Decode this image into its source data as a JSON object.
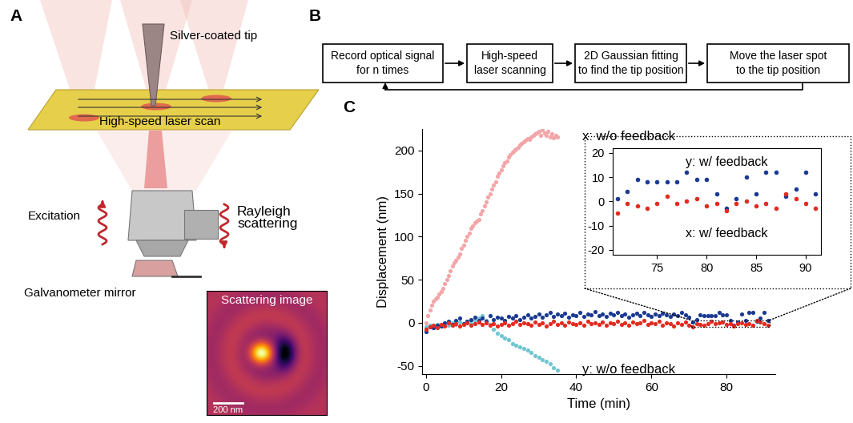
{
  "panel_labels": [
    "A",
    "B",
    "C"
  ],
  "panel_a": {
    "tip": "Silver-coated tip",
    "scan": "High-speed laser scan",
    "excitation": "Excitation",
    "scattering": "Rayleigh\nscattering",
    "mirror": "Galvanometer mirror",
    "image_title": "Scattering image",
    "scale_bar": "200 nm"
  },
  "panel_b": {
    "steps": [
      "Record optical signal\nfor n times",
      "High-speed\nlaser scanning",
      "2D Gaussian fitting\nto find the tip position",
      "Move the laser spot\nto the tip position"
    ]
  },
  "chart_data": [
    {
      "type": "scatter",
      "marker": "o",
      "xlabel": "Time (min)",
      "ylabel": "Displacement (nm)",
      "xlim": [
        -1,
        93
      ],
      "ylim": [
        -60,
        225
      ],
      "xticks": [
        0,
        20,
        40,
        60,
        80
      ],
      "yticks": [
        -50,
        0,
        50,
        100,
        150,
        200
      ],
      "series": [
        {
          "name": "x: w/o feedback",
          "color": "#f4a5a8",
          "x": [
            0,
            0.5,
            1,
            1.5,
            2,
            2.5,
            3,
            3.5,
            4,
            4.5,
            5,
            5.5,
            6,
            6.5,
            7,
            7.5,
            8,
            8.5,
            9,
            9.5,
            10,
            10.5,
            11,
            11.5,
            12,
            12.5,
            13,
            13.5,
            14,
            14.5,
            15,
            15.5,
            16,
            16.5,
            17,
            17.5,
            18,
            18.5,
            19,
            19.5,
            20,
            20.5,
            21,
            21.5,
            22,
            22.5,
            23,
            23.5,
            24,
            24.5,
            25,
            25.5,
            26,
            26.5,
            27,
            27.5,
            28,
            28.5,
            29,
            29.5,
            30,
            30.5,
            31,
            31.5,
            32,
            32.5,
            33,
            33.5,
            34,
            34.5,
            35
          ],
          "values": [
            0,
            8,
            15,
            20,
            25,
            28,
            30,
            33,
            36,
            40,
            45,
            50,
            55,
            60,
            66,
            70,
            72,
            76,
            80,
            86,
            90,
            96,
            100,
            104,
            110,
            112,
            116,
            118,
            120,
            126,
            130,
            136,
            140,
            146,
            150,
            155,
            160,
            164,
            170,
            174,
            178,
            182,
            186,
            188,
            192,
            195,
            198,
            200,
            202,
            204,
            206,
            208,
            210,
            212,
            214,
            213,
            216,
            218,
            219,
            220,
            222,
            218,
            224,
            220,
            218,
            222,
            216,
            219,
            215,
            218,
            216
          ]
        },
        {
          "name": "y: w/o feedback",
          "color": "#71c6d1",
          "x": [
            0,
            1,
            2,
            3,
            4,
            5,
            6,
            7,
            8,
            9,
            10,
            11,
            12,
            13,
            14,
            15,
            16,
            17,
            18,
            19,
            20,
            21,
            22,
            23,
            24,
            25,
            26,
            27,
            28,
            29,
            30,
            31,
            32,
            33,
            34,
            35
          ],
          "values": [
            -5,
            -3,
            -6,
            -2,
            -4,
            -1,
            -3,
            0,
            -2,
            1,
            -1,
            2,
            0,
            3,
            5,
            8,
            3,
            -2,
            -8,
            -12,
            -15,
            -18,
            -20,
            -24,
            -26,
            -28,
            -30,
            -32,
            -35,
            -38,
            -40,
            -43,
            -45,
            -48,
            -52,
            -55
          ]
        },
        {
          "color": "#1b3a93",
          "x": [
            0,
            1,
            2,
            3,
            4,
            5,
            6,
            7,
            8,
            9,
            10,
            11,
            12,
            13,
            14,
            15,
            16,
            17,
            18,
            19,
            20,
            21,
            22,
            23,
            24,
            25,
            26,
            27,
            28,
            29,
            30,
            31,
            32,
            33,
            34,
            35,
            36,
            37,
            38,
            39,
            40,
            41,
            42,
            43,
            44,
            45,
            46,
            47,
            48,
            49,
            50,
            51,
            52,
            53,
            54,
            55,
            56,
            57,
            58,
            59,
            60,
            61,
            62,
            63,
            64,
            65,
            66,
            67,
            68,
            69,
            70,
            71,
            72,
            73,
            74,
            75,
            76,
            77,
            78,
            79,
            80,
            81,
            82,
            83,
            84,
            85,
            86,
            87,
            88,
            89,
            90,
            91
          ],
          "values": [
            -10,
            -5,
            -6,
            -3,
            -4,
            0,
            2,
            -2,
            3,
            5,
            -1,
            2,
            4,
            6,
            3,
            5,
            2,
            8,
            4,
            6,
            5,
            3,
            7,
            5,
            8,
            4,
            6,
            9,
            5,
            7,
            10,
            6,
            9,
            12,
            7,
            10,
            8,
            11,
            6,
            9,
            8,
            12,
            7,
            10,
            9,
            13,
            8,
            10,
            7,
            11,
            9,
            12,
            8,
            10,
            6,
            9,
            11,
            8,
            12,
            9,
            7,
            10,
            8,
            11,
            9,
            7,
            10,
            8,
            12,
            9,
            6,
            1,
            4,
            9,
            8,
            8,
            8,
            8,
            12,
            9,
            9,
            3,
            -3,
            1,
            10,
            3,
            12,
            12,
            2,
            5,
            12,
            3
          ]
        },
        {
          "color": "#e42b20",
          "x": [
            0,
            1,
            2,
            3,
            4,
            5,
            6,
            7,
            8,
            9,
            10,
            11,
            12,
            13,
            14,
            15,
            16,
            17,
            18,
            19,
            20,
            21,
            22,
            23,
            24,
            25,
            26,
            27,
            28,
            29,
            30,
            31,
            32,
            33,
            34,
            35,
            36,
            37,
            38,
            39,
            40,
            41,
            42,
            43,
            44,
            45,
            46,
            47,
            48,
            49,
            50,
            51,
            52,
            53,
            54,
            55,
            56,
            57,
            58,
            59,
            60,
            61,
            62,
            63,
            64,
            65,
            66,
            67,
            68,
            69,
            70,
            71,
            72,
            73,
            74,
            75,
            76,
            77,
            78,
            79,
            80,
            81,
            82,
            83,
            84,
            85,
            86,
            87,
            88,
            89,
            90,
            91
          ],
          "values": [
            -8,
            -5,
            -3,
            -6,
            -2,
            -4,
            0,
            -3,
            -1,
            -4,
            -2,
            0,
            -3,
            -1,
            1,
            -2,
            0,
            -3,
            -1,
            -4,
            -2,
            0,
            -3,
            -1,
            2,
            -2,
            0,
            -1,
            -3,
            1,
            -2,
            0,
            -4,
            -1,
            2,
            -2,
            0,
            -3,
            1,
            -1,
            -2,
            0,
            -3,
            2,
            -1,
            0,
            -2,
            1,
            -3,
            0,
            -1,
            2,
            -2,
            0,
            -3,
            1,
            -1,
            0,
            3,
            -2,
            0,
            -1,
            2,
            -3,
            0,
            -1,
            -4,
            0,
            -2,
            1,
            -3,
            -5,
            -1,
            -2,
            -3,
            -1,
            2,
            -1,
            0,
            1,
            -2,
            -1,
            -4,
            -1,
            0,
            -2,
            -1,
            -3,
            3,
            1,
            -1,
            -3
          ]
        }
      ]
    },
    {
      "type": "scatter",
      "marker": "o",
      "xlim": [
        70.5,
        91.5
      ],
      "ylim": [
        -22,
        22
      ],
      "xticks": [
        75,
        80,
        85,
        90
      ],
      "yticks": [
        -20,
        -10,
        0,
        10,
        20
      ],
      "series": [
        {
          "name": "y: w/ feedback",
          "color": "#1b3a93",
          "x": [
            71,
            72,
            73,
            74,
            75,
            76,
            77,
            78,
            79,
            80,
            81,
            82,
            83,
            84,
            85,
            86,
            87,
            88,
            89,
            90,
            91
          ],
          "values": [
            1,
            4,
            9,
            8,
            8,
            8,
            8,
            12,
            9,
            9,
            3,
            -3,
            1,
            10,
            3,
            12,
            12,
            2,
            5,
            12,
            3
          ]
        },
        {
          "name": "x: w/ feedback",
          "color": "#e42b20",
          "x": [
            71,
            72,
            73,
            74,
            75,
            76,
            77,
            78,
            79,
            80,
            81,
            82,
            83,
            84,
            85,
            86,
            87,
            88,
            89,
            90,
            91
          ],
          "values": [
            -5,
            -1,
            -2,
            -3,
            -1,
            2,
            -1,
            0,
            1,
            -2,
            -1,
            -4,
            -1,
            0,
            -2,
            -1,
            -3,
            3,
            1,
            -1,
            -3
          ]
        }
      ]
    }
  ]
}
